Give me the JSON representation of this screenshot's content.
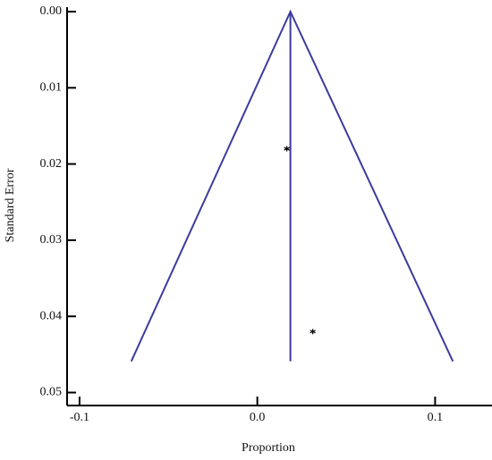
{
  "chart_data": {
    "type": "scatter",
    "x_label": "Proportion",
    "y_label": "Standard Error",
    "x": [
      0.0166,
      0.0312
    ],
    "y": [
      0.018,
      0.042
    ],
    "color": "#000000",
    "funnel": {
      "color": "#3b3b9e",
      "pooled": 0.0186,
      "x": [
        -0.0709,
        0.0186,
        0.11
      ],
      "y": [
        0.0459,
        0,
        0.0459
      ],
      "pooled_y": [
        0,
        0.0459
      ]
    },
    "xlim": [
      -0.107,
      0.132
    ],
    "ylim": [
      0,
      0.0517
    ],
    "y_inverted": true,
    "xticks": [
      -0.1,
      {
        "value": 0,
        "label": "0.0"
      },
      0.1
    ],
    "yticks": [
      {
        "value": 0,
        "label": "0.00"
      },
      0.01,
      0.02,
      0.03,
      0.04,
      0.05
    ]
  }
}
